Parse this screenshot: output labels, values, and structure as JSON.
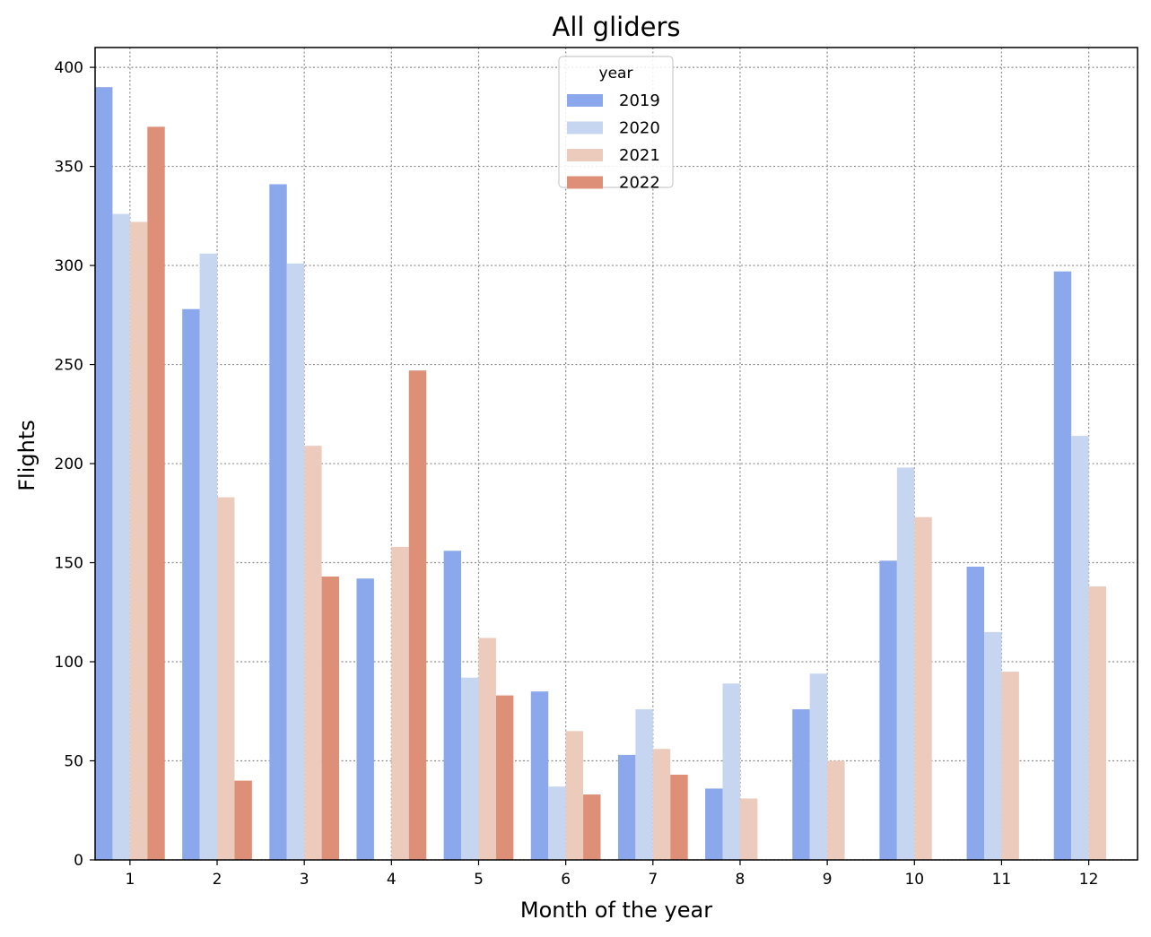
{
  "chart_data": {
    "type": "bar",
    "title": "All gliders",
    "xlabel": "Month of the year",
    "ylabel": "Flights",
    "categories": [
      "1",
      "2",
      "3",
      "4",
      "5",
      "6",
      "7",
      "8",
      "9",
      "10",
      "11",
      "12"
    ],
    "ylim": [
      0,
      410
    ],
    "yticks": [
      0,
      50,
      100,
      150,
      200,
      250,
      300,
      350,
      400
    ],
    "grid": true,
    "legend": {
      "title": "year",
      "placement": "top-center"
    },
    "series": [
      {
        "name": "2019",
        "color": "#8aa8eb",
        "values": [
          390,
          278,
          341,
          142,
          156,
          85,
          53,
          36,
          76,
          151,
          148,
          297
        ]
      },
      {
        "name": "2020",
        "color": "#c6d5f0",
        "values": [
          326,
          306,
          301,
          0,
          92,
          37,
          76,
          89,
          94,
          198,
          115,
          214
        ]
      },
      {
        "name": "2021",
        "color": "#eccbbd",
        "values": [
          322,
          183,
          209,
          158,
          112,
          65,
          56,
          31,
          50,
          173,
          95,
          138
        ]
      },
      {
        "name": "2022",
        "color": "#de8f78",
        "values": [
          370,
          40,
          143,
          247,
          83,
          33,
          43,
          0,
          0,
          0,
          0,
          0
        ]
      }
    ]
  }
}
